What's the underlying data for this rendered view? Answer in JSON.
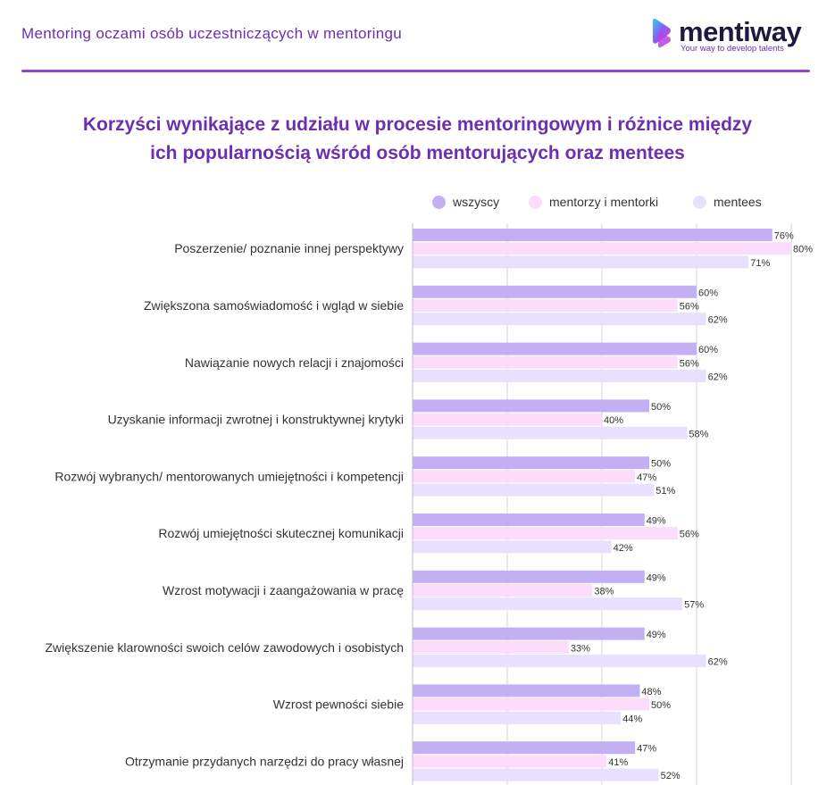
{
  "header": {
    "title": "Mentoring oczami osób uczestniczących w mentoringu",
    "logo_text": "mentiway",
    "logo_tagline": "Your way to develop talents"
  },
  "chart_data": {
    "type": "bar",
    "orientation": "horizontal",
    "title": "Korzyści wynikające z udziału w procesie mentoringowym i różnice między ich popularnością wśród osób mentorujących oraz mentees",
    "title_lines": [
      "Korzyści wynikające z udziału w procesie mentoringowym i różnice między",
      "ich popularnością wśród osób mentorujących oraz mentees"
    ],
    "value_suffix": "%",
    "xlim": [
      0,
      80
    ],
    "gridlines": [
      0,
      20,
      40,
      60,
      80
    ],
    "grid": true,
    "legend_position": "top-right",
    "categories": [
      "Poszerzenie/ poznanie innej perspektywy",
      "Zwiększona samoświadomość i wgląd w siebie",
      "Nawiązanie nowych relacji i znajomości",
      "Uzyskanie informacji zwrotnej i konstruktywnej krytyki",
      "Rozwój wybranych/ mentorowanych umiejętności i kompetencji",
      "Rozwój umiejętności skutecznej komunikacji",
      "Wzrost motywacji i zaangażowania w pracę",
      "Zwiększenie klarowności swoich celów zawodowych i osobistych",
      "Wzrost pewności siebie",
      "Otrzymanie przydanych narzędzi do pracy własnej"
    ],
    "series": [
      {
        "name": "wszyscy",
        "color": "#c4aef4",
        "values": [
          76,
          60,
          60,
          50,
          50,
          49,
          49,
          49,
          48,
          47
        ]
      },
      {
        "name": "mentorzy i mentorki",
        "color": "#fcdcfb",
        "values": [
          80,
          56,
          56,
          40,
          47,
          56,
          38,
          33,
          50,
          41
        ]
      },
      {
        "name": "mentees",
        "color": "#e8e0fc",
        "values": [
          71,
          62,
          62,
          58,
          51,
          42,
          57,
          62,
          44,
          52
        ]
      }
    ]
  }
}
